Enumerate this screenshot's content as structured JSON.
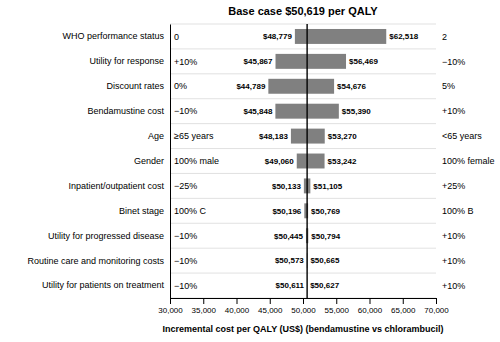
{
  "chart_data": {
    "type": "tornado",
    "orientation": "horizontal",
    "title": "Base case $50,619 per QALY",
    "x_label": "Incremental cost per QALY (US$) (bendamustine vs chlorambucil)",
    "categories": [
      "WHO performance status",
      "Utility for response",
      "Discount rates",
      "Bendamustine cost",
      "Age",
      "Gender",
      "Inpatient/outpatient cost",
      "Binet stage",
      "Utility for progressed disease",
      "Routine care and monitoring costs",
      "Utility for patients on treatment"
    ],
    "low": [
      48779,
      45867,
      44789,
      45848,
      48183,
      49060,
      50133,
      50196,
      50445,
      50573,
      50611
    ],
    "high": [
      62518,
      56469,
      54676,
      55390,
      53270,
      53242,
      51105,
      50769,
      50794,
      50665,
      50627
    ],
    "low_labels": [
      "$48,779",
      "$45,867",
      "$44,789",
      "$45,848",
      "$48,183",
      "$49,060",
      "$50,133",
      "$50,196",
      "$50,445",
      "$50,573",
      "$50,611"
    ],
    "high_labels": [
      "$62,518",
      "$56,469",
      "$54,676",
      "$55,390",
      "$53,270",
      "$53,242",
      "$51,105",
      "$50,769",
      "$50,794",
      "$50,665",
      "$50,627"
    ],
    "left_annotations": [
      "0",
      "+10%",
      "0%",
      "−10%",
      "≥65 years",
      "100% male",
      "−25%",
      "100% C",
      "−10%",
      "−10%",
      "−10%"
    ],
    "right_annotations": [
      "2",
      "−10%",
      "5%",
      "+10%",
      "<65 years",
      "100% female",
      "+25%",
      "100% B",
      "+10%",
      "+10%",
      "+10%"
    ],
    "base_case": 50619,
    "color": "#808080",
    "xlim": [
      30000,
      70000
    ],
    "xticks": [
      {
        "value": 30000,
        "label": "30,000"
      },
      {
        "value": 35000,
        "label": "35,000"
      },
      {
        "value": 40000,
        "label": "40,000"
      },
      {
        "value": 45000,
        "label": "45,000"
      },
      {
        "value": 50000,
        "label": "50,000"
      },
      {
        "value": 55000,
        "label": "55,000"
      },
      {
        "value": 60000,
        "label": "60,000"
      },
      {
        "value": 65000,
        "label": "65,000"
      },
      {
        "value": 70000,
        "label": "70,000"
      }
    ],
    "grid": true,
    "data_labels": true
  }
}
